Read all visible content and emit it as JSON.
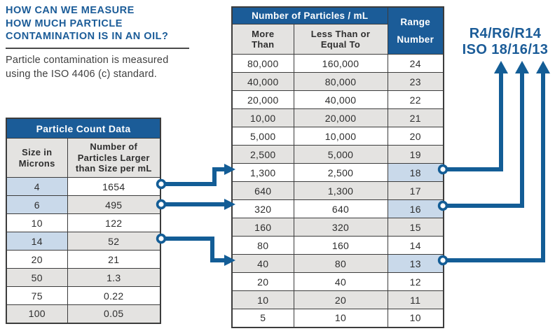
{
  "colors": {
    "brand_blue": "#1b5c98",
    "arrow_blue": "#135d96",
    "row_gray": "#e4e3e1",
    "highlight_blue": "#c9d9ea",
    "border_dark": "#3c3c3c",
    "text_dark": "#2e2e2e"
  },
  "page": {
    "heading_lines": [
      "HOW CAN WE MEASURE",
      "HOW MUCH PARTICLE",
      "CONTAMINATION IS IN AN OIL?"
    ],
    "intro_lines": [
      "Particle contamination is  measured",
      "using the ISO 4406 (c) standard."
    ]
  },
  "left_table": {
    "title": "Particle Count Data",
    "col1_header": "Size in Microns",
    "col2_header": "Number of Particles Larger than Size per mL",
    "rows": [
      {
        "size": "4",
        "count": "1654",
        "highlighted": true
      },
      {
        "size": "6",
        "count": "495",
        "highlighted": true
      },
      {
        "size": "10",
        "count": "122",
        "highlighted": false
      },
      {
        "size": "14",
        "count": "52",
        "highlighted": true
      },
      {
        "size": "20",
        "count": "21",
        "highlighted": false
      },
      {
        "size": "50",
        "count": "1.3",
        "highlighted": false
      },
      {
        "size": "75",
        "count": "0.22",
        "highlighted": false
      },
      {
        "size": "100",
        "count": "0.05",
        "highlighted": false
      }
    ]
  },
  "right_table": {
    "main_header": "Number of Particles / mL",
    "range_header": "Range Number",
    "col1_header": "More Than",
    "col2_header": "Less Than or Equal To",
    "rows": [
      {
        "more_than": "80,000",
        "less_equal": "160,000",
        "range": "24",
        "highlighted": false
      },
      {
        "more_than": "40,000",
        "less_equal": "80,000",
        "range": "23",
        "highlighted": false
      },
      {
        "more_than": "20,000",
        "less_equal": "40,000",
        "range": "22",
        "highlighted": false
      },
      {
        "more_than": "10,00",
        "less_equal": "20,000",
        "range": "21",
        "highlighted": false
      },
      {
        "more_than": "5,000",
        "less_equal": "10,000",
        "range": "20",
        "highlighted": false
      },
      {
        "more_than": "2,500",
        "less_equal": "5,000",
        "range": "19",
        "highlighted": false
      },
      {
        "more_than": "1,300",
        "less_equal": "2,500",
        "range": "18",
        "highlighted": true
      },
      {
        "more_than": "640",
        "less_equal": "1,300",
        "range": "17",
        "highlighted": false
      },
      {
        "more_than": "320",
        "less_equal": "640",
        "range": "16",
        "highlighted": true
      },
      {
        "more_than": "160",
        "less_equal": "320",
        "range": "15",
        "highlighted": false
      },
      {
        "more_than": "80",
        "less_equal": "160",
        "range": "14",
        "highlighted": false
      },
      {
        "more_than": "40",
        "less_equal": "80",
        "range": "13",
        "highlighted": true
      },
      {
        "more_than": "20",
        "less_equal": "40",
        "range": "12",
        "highlighted": false
      },
      {
        "more_than": "10",
        "less_equal": "20",
        "range": "11",
        "highlighted": false
      },
      {
        "more_than": "5",
        "less_equal": "10",
        "range": "10",
        "highlighted": false
      }
    ]
  },
  "annotation": {
    "line1": "R4/R6/R14",
    "line2": "ISO 18/16/13"
  }
}
